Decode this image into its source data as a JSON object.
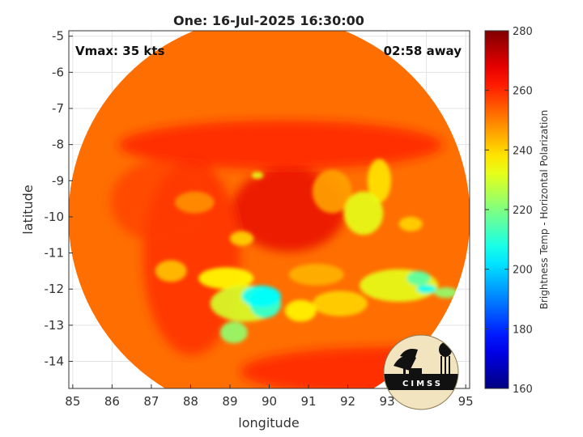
{
  "title": "One: 16-Jul-2025 16:30:00",
  "vmax_text": "Vmax: 35 kts",
  "time_text": "02:58 away",
  "xlabel": "longitude",
  "ylabel": "latitude",
  "logo_text": "CIMSS",
  "colorbar": {
    "label": "Brightness Temp - Horizontal Polarization",
    "min": 160,
    "max": 280,
    "ticks": [
      "160",
      "180",
      "200",
      "220",
      "240",
      "260",
      "280"
    ],
    "colormap": "jet"
  },
  "chart_data": {
    "type": "heatmap",
    "title": "One: 16-Jul-2025 16:30:00",
    "xlabel": "longitude",
    "ylabel": "latitude",
    "xlim": [
      84.9,
      95.1
    ],
    "ylim": [
      -14.75,
      -4.85
    ],
    "xticks": [
      "85",
      "86",
      "87",
      "88",
      "89",
      "90",
      "91",
      "92",
      "93",
      "94",
      "95"
    ],
    "yticks": [
      "-5",
      "-6",
      "-7",
      "-8",
      "-9",
      "-10",
      "-11",
      "-12",
      "-13",
      "-14"
    ],
    "grid": true,
    "swath_center": {
      "lon": 90.0,
      "lat": -10.0
    },
    "storm_center": {
      "lon": 90.5,
      "lat": -9.8
    },
    "features": [
      {
        "lon": 89.8,
        "lat": -12.2,
        "tb": 205,
        "rx": 0.5,
        "ry": 0.3
      },
      {
        "lon": 89.9,
        "lat": -12.4,
        "tb": 210,
        "rx": 0.4,
        "ry": 0.4
      },
      {
        "lon": 89.4,
        "lat": -12.4,
        "tb": 230,
        "rx": 0.9,
        "ry": 0.5
      },
      {
        "lon": 89.1,
        "lat": -13.2,
        "tb": 222,
        "rx": 0.35,
        "ry": 0.3
      },
      {
        "lon": 88.9,
        "lat": -11.7,
        "tb": 235,
        "rx": 0.7,
        "ry": 0.3
      },
      {
        "lon": 90.8,
        "lat": -12.6,
        "tb": 236,
        "rx": 0.4,
        "ry": 0.3
      },
      {
        "lon": 89.3,
        "lat": -10.6,
        "tb": 240,
        "rx": 0.3,
        "ry": 0.2
      },
      {
        "lon": 87.5,
        "lat": -11.5,
        "tb": 242,
        "rx": 0.4,
        "ry": 0.3
      },
      {
        "lon": 89.7,
        "lat": -8.85,
        "tb": 232,
        "rx": 0.15,
        "ry": 0.1
      },
      {
        "lon": 92.4,
        "lat": -9.9,
        "tb": 232,
        "rx": 0.5,
        "ry": 0.6
      },
      {
        "lon": 92.8,
        "lat": -9.0,
        "tb": 238,
        "rx": 0.3,
        "ry": 0.6
      },
      {
        "lon": 93.6,
        "lat": -10.2,
        "tb": 240,
        "rx": 0.3,
        "ry": 0.2
      },
      {
        "lon": 93.3,
        "lat": -11.9,
        "tb": 232,
        "rx": 1.0,
        "ry": 0.45
      },
      {
        "lon": 93.8,
        "lat": -11.7,
        "tb": 215,
        "rx": 0.3,
        "ry": 0.2
      },
      {
        "lon": 94.0,
        "lat": -12.0,
        "tb": 205,
        "rx": 0.25,
        "ry": 0.12
      },
      {
        "lon": 94.5,
        "lat": -12.1,
        "tb": 222,
        "rx": 0.3,
        "ry": 0.15
      },
      {
        "lon": 91.8,
        "lat": -12.4,
        "tb": 240,
        "rx": 0.7,
        "ry": 0.35
      },
      {
        "lon": 91.2,
        "lat": -11.6,
        "tb": 244,
        "rx": 0.7,
        "ry": 0.3
      },
      {
        "lon": 91.6,
        "lat": -9.3,
        "tb": 246,
        "rx": 0.5,
        "ry": 0.6
      },
      {
        "lon": 88.1,
        "lat": -9.6,
        "tb": 248,
        "rx": 0.5,
        "ry": 0.3
      }
    ],
    "background_tb": 252,
    "eye_tb": 268
  }
}
